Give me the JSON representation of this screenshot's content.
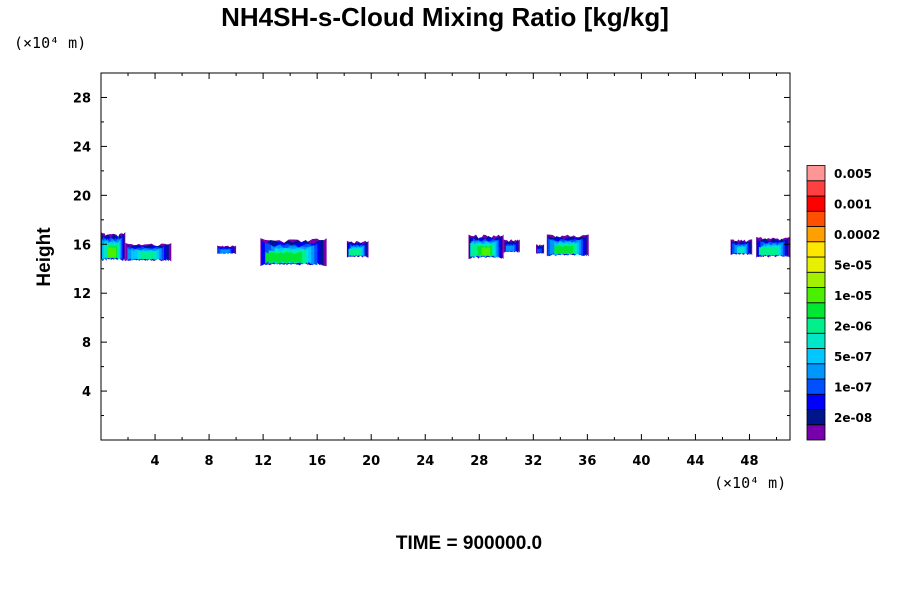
{
  "chart_data": {
    "type": "contour",
    "title": "NH4SH-s-Cloud Mixing Ratio [kg/kg]",
    "xlabel": "",
    "ylabel": "Height",
    "x_unit": "(×10⁴ m)",
    "y_unit": "(×10⁴ m)",
    "xlim": [
      0,
      51
    ],
    "ylim": [
      0,
      30
    ],
    "x_ticks": [
      4,
      8,
      12,
      16,
      20,
      24,
      28,
      32,
      36,
      40,
      44,
      48
    ],
    "y_ticks": [
      4,
      8,
      12,
      16,
      20,
      24,
      28
    ],
    "footer": "TIME = 900000.0",
    "colorbar": {
      "colors": [
        "#7700aa",
        "#00148c",
        "#0000ff",
        "#0050ff",
        "#0096ff",
        "#00c8ff",
        "#00e6c8",
        "#00f08c",
        "#00e632",
        "#4bf000",
        "#a0f000",
        "#e6f000",
        "#ffe600",
        "#ffa000",
        "#ff5000",
        "#ff0000",
        "#ff4040",
        "#ff9696"
      ],
      "labels": [
        "2e-08",
        "1e-07",
        "5e-07",
        "2e-06",
        "1e-05",
        "5e-05",
        "0.0002",
        "0.001",
        "0.005"
      ]
    },
    "cloud_patches": [
      {
        "x_start": 0,
        "x_end": 1.8,
        "y_bottom": 14.6,
        "y_top": 17.0,
        "peak_level": 10
      },
      {
        "x_start": 1.8,
        "x_end": 5.2,
        "y_bottom": 14.6,
        "y_top": 16.1,
        "peak_level": 8
      },
      {
        "x_start": 8.6,
        "x_end": 10.0,
        "y_bottom": 15.2,
        "y_top": 15.9,
        "peak_level": 5
      },
      {
        "x_start": 11.8,
        "x_end": 16.7,
        "y_bottom": 14.2,
        "y_top": 16.5,
        "peak_level": 9
      },
      {
        "x_start": 18.2,
        "x_end": 19.8,
        "y_bottom": 14.9,
        "y_top": 16.3,
        "peak_level": 8
      },
      {
        "x_start": 27.2,
        "x_end": 29.8,
        "y_bottom": 14.8,
        "y_top": 16.8,
        "peak_level": 10
      },
      {
        "x_start": 29.8,
        "x_end": 31.0,
        "y_bottom": 15.3,
        "y_top": 16.4,
        "peak_level": 5
      },
      {
        "x_start": 32.2,
        "x_end": 32.8,
        "y_bottom": 15.2,
        "y_top": 16.0,
        "peak_level": 4
      },
      {
        "x_start": 33.0,
        "x_end": 36.1,
        "y_bottom": 15.0,
        "y_top": 16.8,
        "peak_level": 9
      },
      {
        "x_start": 46.6,
        "x_end": 48.2,
        "y_bottom": 15.1,
        "y_top": 16.4,
        "peak_level": 7
      },
      {
        "x_start": 48.5,
        "x_end": 51.0,
        "y_bottom": 14.9,
        "y_top": 16.6,
        "peak_level": 8
      }
    ]
  }
}
